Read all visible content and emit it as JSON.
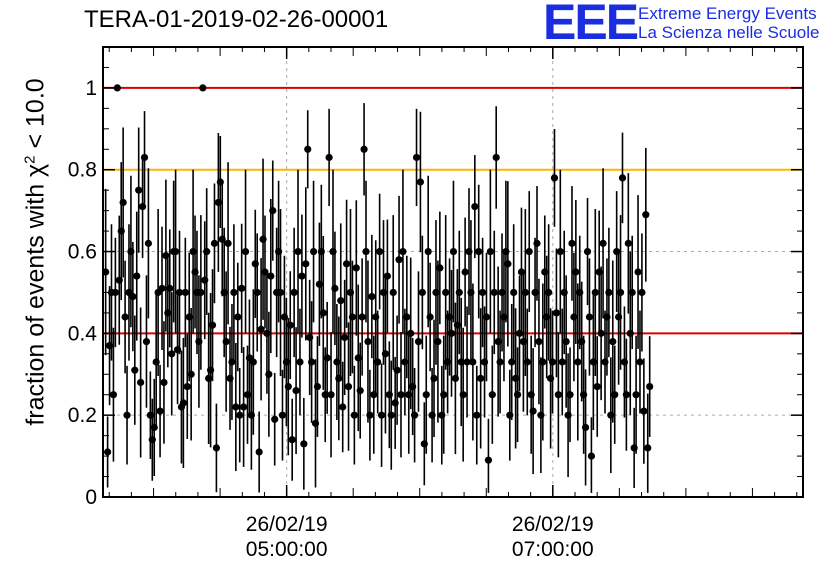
{
  "header": {
    "run_id": "TERA-01-2019-02-26-00001"
  },
  "logo": {
    "mark": "EEE",
    "line1": "Extreme Energy Events",
    "line2": "La Scienza nelle Scuole"
  },
  "chart_data": {
    "type": "scatter",
    "title": "TERA-01-2019-02-26-00001",
    "ylabel_prefix": "fraction of events with ",
    "ylabel_symbol": "χ",
    "ylabel_sup": "2",
    "ylabel_suffix": " < 10.0",
    "ylim": [
      0,
      1.1
    ],
    "yticks": [
      {
        "value": 0,
        "label": "0"
      },
      {
        "value": 0.2,
        "label": "0.2"
      },
      {
        "value": 0.4,
        "label": "0.4"
      },
      {
        "value": 0.6,
        "label": "0.6"
      },
      {
        "value": 0.8,
        "label": "0.8"
      },
      {
        "value": 1,
        "label": "1"
      }
    ],
    "xlim_hours": [
      3.62,
      8.88
    ],
    "xticks": [
      {
        "hour": 5.0,
        "date": "26/02/19",
        "time": "05:00:00"
      },
      {
        "hour": 7.0,
        "date": "26/02/19",
        "time": "07:00:00"
      }
    ],
    "grid": true,
    "reference_lines": [
      {
        "value": 1.0,
        "color": "#dd0000"
      },
      {
        "value": 0.8,
        "color": "#ffb400"
      },
      {
        "value": 0.4,
        "color": "#dd0000"
      }
    ],
    "marker_color": "#000000",
    "points": {
      "x_start_hour": 3.64,
      "x_step_hour": 0.0146,
      "y": [
        0.55,
        0.11,
        0.37,
        0.5,
        0.25,
        0.5,
        1.0,
        0.53,
        0.65,
        0.72,
        0.44,
        0.2,
        0.5,
        0.6,
        0.49,
        0.31,
        0.54,
        0.75,
        0.28,
        0.71,
        0.83,
        0.38,
        0.62,
        0.2,
        0.14,
        0.17,
        0.33,
        0.5,
        0.21,
        0.51,
        0.28,
        0.59,
        0.45,
        0.51,
        0.35,
        0.6,
        0.6,
        0.36,
        0.5,
        0.22,
        0.23,
        0.5,
        0.27,
        0.44,
        0.3,
        0.6,
        0.55,
        0.5,
        0.38,
        0.5,
        1.0,
        0.53,
        0.6,
        0.29,
        0.31,
        0.42,
        0.62,
        0.12,
        0.72,
        0.77,
        0.63,
        0.5,
        0.38,
        0.62,
        0.29,
        0.33,
        0.5,
        0.22,
        0.44,
        0.2,
        0.51,
        0.22,
        0.6,
        0.25,
        0.34,
        0.2,
        0.33,
        0.57,
        0.5,
        0.11,
        0.41,
        0.63,
        0.55,
        0.4,
        0.3,
        0.54,
        0.7,
        0.19,
        0.5,
        0.6,
        0.5,
        0.2,
        0.44,
        0.33,
        0.27,
        0.42,
        0.14,
        0.5,
        0.26,
        0.6,
        0.33,
        0.54,
        0.13,
        0.57,
        0.85,
        0.39,
        0.33,
        0.6,
        0.18,
        0.27,
        0.52,
        0.6,
        0.45,
        0.25,
        0.34,
        0.83,
        0.25,
        0.6,
        0.51,
        0.33,
        0.29,
        0.48,
        0.22,
        0.39,
        0.57,
        0.27,
        0.5,
        0.44,
        0.2,
        0.56,
        0.34,
        0.26,
        0.44,
        0.85,
        0.6,
        0.38,
        0.2,
        0.49,
        0.25,
        0.44,
        0.33,
        0.6,
        0.2,
        0.5,
        0.35,
        0.54,
        0.25,
        0.2,
        0.5,
        0.23,
        0.31,
        0.58,
        0.25,
        0.6,
        0.33,
        0.44,
        0.25,
        0.4,
        0.27,
        0.2,
        0.83,
        0.38,
        0.77,
        0.5,
        0.13,
        0.25,
        0.6,
        0.44,
        0.2,
        0.29,
        0.5,
        0.38,
        0.56,
        0.2,
        0.25,
        0.5,
        0.33,
        0.44,
        0.4,
        0.6,
        0.29,
        0.42,
        0.5,
        0.33,
        0.25,
        0.55,
        0.33,
        0.6,
        0.5,
        0.33,
        0.71,
        0.2,
        0.6,
        0.29,
        0.5,
        0.33,
        0.44,
        0.09,
        0.6,
        0.25,
        0.5,
        0.83,
        0.38,
        0.33,
        0.5,
        0.44,
        0.6,
        0.57,
        0.2,
        0.33,
        0.5,
        0.29,
        0.25,
        0.4,
        0.55,
        0.38,
        0.5,
        0.33,
        0.6,
        0.25,
        0.21,
        0.5,
        0.62,
        0.38,
        0.2,
        0.33,
        0.55,
        0.44,
        0.5,
        0.29,
        0.33,
        0.78,
        0.45,
        0.25,
        0.6,
        0.33,
        0.5,
        0.38,
        0.2,
        0.25,
        0.62,
        0.44,
        0.55,
        0.33,
        0.5,
        0.38,
        0.25,
        0.17,
        0.6,
        0.44,
        0.1,
        0.33,
        0.5,
        0.27,
        0.55,
        0.4,
        0.62,
        0.33,
        0.44,
        0.5,
        0.2,
        0.38,
        0.25,
        0.6,
        0.44,
        0.5,
        0.78,
        0.33,
        0.25,
        0.62,
        0.4,
        0.5,
        0.12,
        0.25,
        0.55,
        0.33,
        0.5,
        0.21,
        0.69,
        0.12,
        0.27
      ]
    }
  }
}
